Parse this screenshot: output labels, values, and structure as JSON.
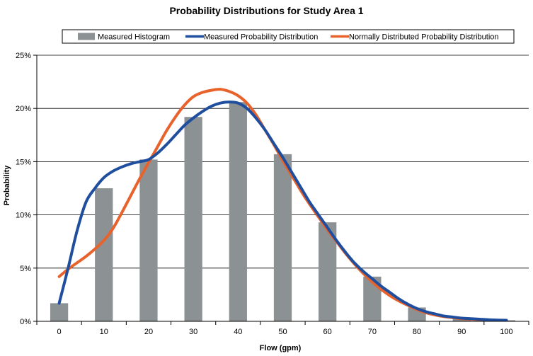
{
  "chart_data": {
    "type": "bar",
    "title": "Probability Distributions for Study Area 1",
    "xlabel": "Flow (gpm)",
    "ylabel": "Probability",
    "ylim": [
      0,
      0.25
    ],
    "xlim": [
      -5,
      105
    ],
    "grid": true,
    "legend_position": "top",
    "y_ticks": [
      {
        "value": 0.0,
        "label": "0%"
      },
      {
        "value": 0.05,
        "label": "5%"
      },
      {
        "value": 0.1,
        "label": "10%"
      },
      {
        "value": 0.15,
        "label": "15%"
      },
      {
        "value": 0.2,
        "label": "20%"
      },
      {
        "value": 0.25,
        "label": "25%"
      }
    ],
    "x_ticks": [
      {
        "value": 0,
        "label": "0"
      },
      {
        "value": 10,
        "label": "10"
      },
      {
        "value": 20,
        "label": "20"
      },
      {
        "value": 30,
        "label": "30"
      },
      {
        "value": 40,
        "label": "40"
      },
      {
        "value": 50,
        "label": "50"
      },
      {
        "value": 60,
        "label": "60"
      },
      {
        "value": 70,
        "label": "70"
      },
      {
        "value": 80,
        "label": "80"
      },
      {
        "value": 90,
        "label": "90"
      },
      {
        "value": 100,
        "label": "100"
      }
    ],
    "series": [
      {
        "name": "Measured Histogram",
        "type": "bar",
        "color": "#8c9294",
        "x": [
          0,
          10,
          20,
          30,
          40,
          50,
          60,
          70,
          80,
          90,
          100
        ],
        "values": [
          0.017,
          0.125,
          0.152,
          0.192,
          0.206,
          0.157,
          0.093,
          0.042,
          0.013,
          0.003,
          0.001
        ]
      },
      {
        "name": "Measured Probability Distribution",
        "type": "line",
        "color": "#1f4e9e",
        "x": [
          0,
          2,
          4,
          6,
          8,
          10,
          12,
          14,
          16,
          18,
          20,
          22,
          24,
          26,
          28,
          30,
          32,
          34,
          36,
          38,
          40,
          42,
          44,
          46,
          48,
          50,
          52,
          54,
          56,
          58,
          60,
          62,
          64,
          66,
          68,
          70,
          72,
          74,
          76,
          78,
          80,
          82,
          84,
          86,
          88,
          90,
          92,
          94,
          96,
          98,
          100
        ],
        "values": [
          0.017,
          0.05,
          0.085,
          0.112,
          0.125,
          0.135,
          0.141,
          0.145,
          0.148,
          0.15,
          0.152,
          0.158,
          0.166,
          0.175,
          0.184,
          0.191,
          0.197,
          0.202,
          0.205,
          0.206,
          0.205,
          0.2,
          0.191,
          0.18,
          0.167,
          0.154,
          0.14,
          0.126,
          0.112,
          0.1,
          0.088,
          0.076,
          0.065,
          0.055,
          0.047,
          0.04,
          0.033,
          0.027,
          0.021,
          0.016,
          0.012,
          0.009,
          0.007,
          0.005,
          0.004,
          0.003,
          0.0025,
          0.002,
          0.0015,
          0.0012,
          0.001
        ]
      },
      {
        "name": "Normally Distributed Probability Distribution",
        "type": "line",
        "color": "#e8622c",
        "x": [
          0,
          2,
          4,
          6,
          8,
          10,
          12,
          14,
          16,
          18,
          20,
          22,
          24,
          26,
          28,
          30,
          32,
          34,
          36,
          38,
          40,
          42,
          44,
          46,
          48,
          50,
          52,
          54,
          56,
          58,
          60,
          62,
          64,
          66,
          68,
          70,
          72,
          74,
          76,
          78,
          80,
          82,
          84,
          86,
          88,
          90,
          92,
          94,
          96,
          98,
          100
        ],
        "values": [
          0.042,
          0.049,
          0.055,
          0.061,
          0.068,
          0.076,
          0.087,
          0.102,
          0.118,
          0.134,
          0.149,
          0.164,
          0.179,
          0.192,
          0.203,
          0.211,
          0.215,
          0.217,
          0.218,
          0.216,
          0.212,
          0.205,
          0.194,
          0.18,
          0.166,
          0.151,
          0.137,
          0.123,
          0.11,
          0.098,
          0.086,
          0.075,
          0.064,
          0.054,
          0.045,
          0.037,
          0.03,
          0.024,
          0.019,
          0.015,
          0.011,
          0.008,
          0.006,
          0.0045,
          0.0035,
          0.0025,
          0.002,
          0.0015,
          0.0012,
          0.001,
          0.001
        ]
      }
    ]
  }
}
